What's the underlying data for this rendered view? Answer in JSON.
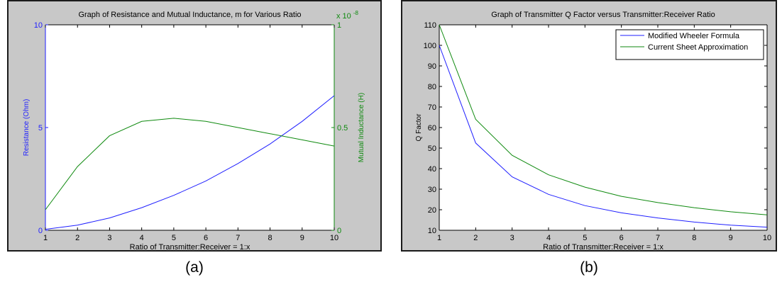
{
  "charts": {
    "a": {
      "title": "Graph of Resistance and Mutual Inductance, m for Various Ratio",
      "xlabel": "Ratio of Transmitter:Receiver = 1:x",
      "ylabel_left": "Resistance (Ohm)",
      "ylabel_right": "Mutual Inductance (H)",
      "right_exponent_base": "x 10",
      "right_exponent_power": "-8",
      "caption": "(a)"
    },
    "b": {
      "title": "Graph of Transmitter Q Factor versus Transmitter:Receiver Ratio",
      "xlabel": "Ratio of Transmitter:Receiver = 1:x",
      "ylabel": "Q Factor",
      "caption": "(b)"
    }
  },
  "colors": {
    "blue": "#1f1fff",
    "green": "#0f8a0f",
    "axis": "#000000"
  },
  "chart_data": [
    {
      "type": "line",
      "title": "Graph of Resistance and Mutual Inductance, m for Various Ratio",
      "xlabel": "Ratio of Transmitter:Receiver = 1:x",
      "x": [
        1,
        2,
        3,
        4,
        5,
        6,
        7,
        8,
        9,
        10
      ],
      "xticks": [
        "1",
        "2",
        "3",
        "4",
        "5",
        "6",
        "7",
        "8",
        "9",
        "10"
      ],
      "xlim": [
        1,
        10
      ],
      "ylabel": "Resistance (Ohm)",
      "ylim": [
        0,
        10
      ],
      "yticks": [
        "0",
        "5",
        "10"
      ],
      "y2label": "Mutual Inductance (H)",
      "y2lim": [
        0,
        1
      ],
      "y2ticks": [
        "0",
        "0.5",
        "1"
      ],
      "y2_multiplier": "x 10^-8",
      "series": [
        {
          "axis": "left",
          "color": "#1f1fff",
          "values": [
            0.05,
            0.25,
            0.6,
            1.1,
            1.7,
            2.4,
            3.25,
            4.2,
            5.3,
            6.55
          ]
        },
        {
          "axis": "right",
          "color": "#0f8a0f",
          "values": [
            0.1,
            0.31,
            0.46,
            0.53,
            0.545,
            0.53,
            0.5,
            0.47,
            0.44,
            0.41
          ]
        }
      ],
      "grid": false
    },
    {
      "type": "line",
      "title": "Graph of Transmitter Q Factor versus Transmitter:Receiver Ratio",
      "xlabel": "Ratio of Transmitter:Receiver = 1:x",
      "ylabel": "Q Factor",
      "x": [
        1,
        2,
        3,
        4,
        5,
        6,
        7,
        8,
        9,
        10
      ],
      "xticks": [
        "1",
        "2",
        "3",
        "4",
        "5",
        "6",
        "7",
        "8",
        "9",
        "10"
      ],
      "xlim": [
        1,
        10
      ],
      "ylim": [
        10,
        110
      ],
      "yticks": [
        "10",
        "20",
        "30",
        "40",
        "50",
        "60",
        "70",
        "80",
        "90",
        "100",
        "110"
      ],
      "legend": "top-right",
      "series": [
        {
          "name": "Modified Wheeler Formula",
          "color": "#1f1fff",
          "values": [
            100,
            52.5,
            36,
            27.5,
            22,
            18.5,
            16,
            14,
            12.5,
            11.5
          ]
        },
        {
          "name": "Current Sheet Approximation",
          "color": "#0f8a0f",
          "values": [
            110,
            64,
            46.5,
            37,
            31,
            26.5,
            23.5,
            21,
            19,
            17.5
          ]
        }
      ],
      "grid": false
    }
  ]
}
